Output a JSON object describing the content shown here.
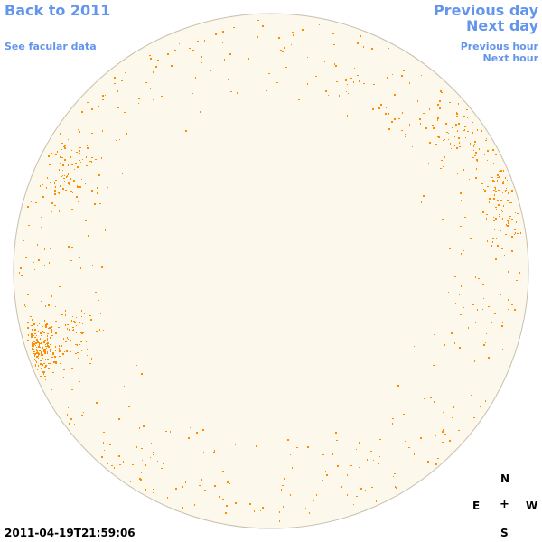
{
  "nav": {
    "back_label": "Back to 2011",
    "facular_label": "See facular data",
    "prev_day_label": "Previous day",
    "next_day_label": "Next day",
    "prev_hour_label": "Previous hour",
    "next_hour_label": "Next hour"
  },
  "compass": {
    "north": "N",
    "east": "E",
    "center": "+",
    "west": "W",
    "south": "S"
  },
  "timestamp": "2011-04-19T21:59:06",
  "colors": {
    "link": "#6495ed",
    "disk_fill": "#fdf8ec",
    "disk_outline": "#c8bfae",
    "feature": "#ff8c00"
  },
  "disk": {
    "feature_type": "facular regions"
  }
}
